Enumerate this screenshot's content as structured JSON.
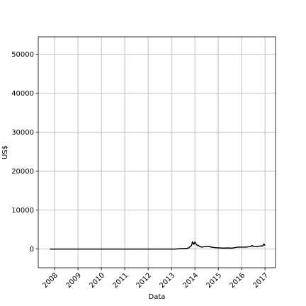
{
  "chart_data": {
    "type": "line",
    "title": "",
    "xlabel": "Data",
    "ylabel": "US$",
    "grid": true,
    "xlim": [
      2007.3,
      2017.45
    ],
    "ylim": [
      -4800,
      54500
    ],
    "x_ticks": [
      2008,
      2009,
      2010,
      2011,
      2012,
      2013,
      2014,
      2015,
      2016,
      2017
    ],
    "x_tick_labels": [
      "2008",
      "2009",
      "2010",
      "2011",
      "2012",
      "2013",
      "2014",
      "2015",
      "2016",
      "2017"
    ],
    "y_ticks": [
      0,
      10000,
      20000,
      30000,
      40000,
      50000
    ],
    "y_tick_labels": [
      "0",
      "10000",
      "20000",
      "30000",
      "40000",
      "50000"
    ],
    "series": [
      {
        "color": "#000000",
        "x": [
          2007.8,
          2008.5,
          2009.5,
          2010.5,
          2011.5,
          2012.5,
          2013.0,
          2013.15,
          2013.25,
          2013.35,
          2013.45,
          2013.55,
          2013.65,
          2013.75,
          2013.85,
          2013.9,
          2013.95,
          2014.0,
          2014.05,
          2014.1,
          2014.15,
          2014.2,
          2014.3,
          2014.4,
          2014.5,
          2014.6,
          2014.7,
          2014.8,
          2014.9,
          2015.0,
          2015.1,
          2015.2,
          2015.3,
          2015.4,
          2015.5,
          2015.6,
          2015.7,
          2015.8,
          2015.9,
          2016.0,
          2016.1,
          2016.2,
          2016.3,
          2016.4,
          2016.45,
          2016.5,
          2016.6,
          2016.7,
          2016.8,
          2016.9,
          2016.95,
          2017.0
        ],
        "y": [
          0,
          0,
          0,
          0,
          0,
          0,
          0,
          0,
          50,
          100,
          100,
          150,
          150,
          350,
          900,
          1900,
          1200,
          1800,
          1300,
          1000,
          900,
          700,
          500,
          600,
          700,
          700,
          500,
          400,
          350,
          300,
          300,
          250,
          250,
          300,
          250,
          250,
          350,
          450,
          500,
          500,
          500,
          500,
          600,
          700,
          900,
          700,
          700,
          700,
          800,
          800,
          1300,
          900
        ]
      }
    ]
  }
}
